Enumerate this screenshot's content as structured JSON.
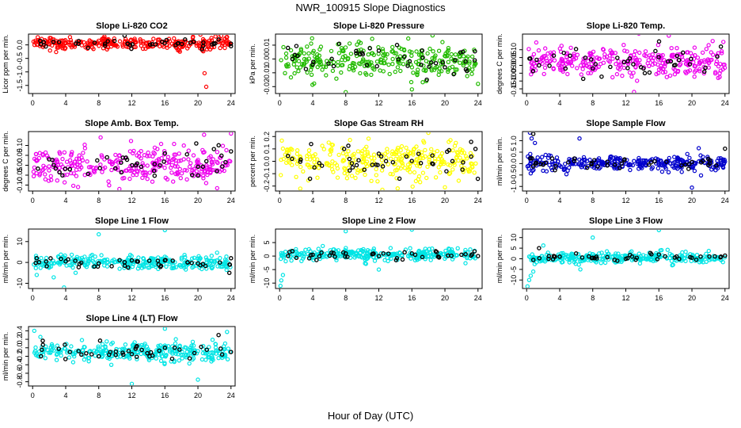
{
  "title": "NWR_100915  Slope Diagnostics",
  "xlabel": "Hour of Day (UTC)",
  "chart_data": [
    {
      "type": "scatter",
      "title": "Slope Li-820 CO2",
      "ylabel": "Licor ppm per min.",
      "color": "#ff0000",
      "ylim": [
        -1.8,
        0.4
      ],
      "yticks": [
        0.0,
        -0.5,
        -1.0,
        -1.5
      ],
      "ytick_labels": [
        "0.0",
        "-0.5",
        "-1.0",
        "-1.5"
      ],
      "xlim": [
        -0.5,
        24.5
      ],
      "xticks": [
        0,
        4,
        8,
        12,
        16,
        20,
        24
      ],
      "spread": 0.11,
      "center": 0.05,
      "outliers": [
        {
          "x": 20.8,
          "y": -1.05
        },
        {
          "x": 21.0,
          "y": -1.55
        },
        {
          "x": 20.3,
          "y": 0.38
        }
      ],
      "black_points": [
        {
          "x": 1,
          "y": 0.02
        },
        {
          "x": 3.2,
          "y": 0.1
        },
        {
          "x": 7.5,
          "y": 0.08
        },
        {
          "x": 11.5,
          "y": 0.05
        },
        {
          "x": 16.2,
          "y": 0.18
        },
        {
          "x": 19.5,
          "y": 0.12
        },
        {
          "x": 22.5,
          "y": 0.2
        },
        {
          "x": 24,
          "y": -0.05
        }
      ]
    },
    {
      "type": "scatter",
      "title": "Slope Li-820 Pressure",
      "ylabel": "kPa per min.",
      "color": "#22bb00",
      "ylim": [
        -0.025,
        0.018
      ],
      "yticks": [
        0.01,
        0.0,
        -0.01,
        -0.02
      ],
      "ytick_labels": [
        "0.01",
        "0.00",
        "-0.01",
        "-0.02"
      ],
      "xlim": [
        -0.5,
        24.5
      ],
      "xticks": [
        0,
        4,
        8,
        12,
        16,
        20,
        24
      ],
      "spread": 0.005,
      "center": -0.001,
      "outliers": [
        {
          "x": 8.0,
          "y": -0.024
        },
        {
          "x": 16.0,
          "y": -0.022
        },
        {
          "x": 18.5,
          "y": 0.017
        },
        {
          "x": 24.0,
          "y": -0.018
        }
      ],
      "black_points": [
        {
          "x": 1,
          "y": 0.008
        },
        {
          "x": 4,
          "y": -0.004
        },
        {
          "x": 7.2,
          "y": 0.011
        },
        {
          "x": 12,
          "y": 0.006
        },
        {
          "x": 15.5,
          "y": -0.005
        },
        {
          "x": 17.8,
          "y": -0.015
        },
        {
          "x": 20,
          "y": -0.006
        },
        {
          "x": 23.6,
          "y": -0.001
        }
      ]
    },
    {
      "type": "scatter",
      "title": "Slope Li-820 Temp.",
      "ylabel": "degrees C per min.",
      "color": "#ee00ee",
      "ylim": [
        -0.18,
        0.2
      ],
      "yticks": [
        0.1,
        0.05,
        0.0,
        -0.05,
        -0.1,
        -0.15
      ],
      "ytick_labels": [
        "0.10",
        "0.05",
        "0.00",
        "-0.05",
        "-0.10",
        "-0.15"
      ],
      "xlim": [
        -0.5,
        24.5
      ],
      "xticks": [
        0,
        4,
        8,
        12,
        16,
        20,
        24
      ],
      "spread": 0.05,
      "center": 0.02,
      "outliers": [
        {
          "x": 17.2,
          "y": 0.19
        },
        {
          "x": 13.0,
          "y": -0.17
        },
        {
          "x": 23.8,
          "y": 0.15
        }
      ],
      "black_points": [
        {
          "x": 1.5,
          "y": 0.0
        },
        {
          "x": 4.5,
          "y": 0.08
        },
        {
          "x": 8,
          "y": -0.02
        },
        {
          "x": 11.8,
          "y": 0.02
        },
        {
          "x": 14.3,
          "y": -0.05
        },
        {
          "x": 18.2,
          "y": 0.06
        },
        {
          "x": 21.5,
          "y": -0.04
        },
        {
          "x": 23.5,
          "y": 0.12
        }
      ]
    },
    {
      "type": "scatter",
      "title": "Slope Amb. Box Temp.",
      "ylabel": "degrees C per min.",
      "color": "#ee00ee",
      "ylim": [
        -0.13,
        0.17
      ],
      "yticks": [
        0.1,
        0.05,
        0.0,
        -0.05,
        -0.1
      ],
      "ytick_labels": [
        "0.10",
        "0.05",
        "0.00",
        "-0.05",
        "-0.10"
      ],
      "xlim": [
        -0.5,
        24.5
      ],
      "xticks": [
        0,
        4,
        8,
        12,
        16,
        20,
        24
      ],
      "spread": 0.045,
      "center": 0.0,
      "outliers": [
        {
          "x": 10.5,
          "y": -0.12
        },
        {
          "x": 24.0,
          "y": 0.16
        },
        {
          "x": 5.5,
          "y": -0.11
        }
      ],
      "black_points": [
        {
          "x": 2,
          "y": 0.03
        },
        {
          "x": 4.5,
          "y": -0.02
        },
        {
          "x": 9,
          "y": 0.04
        },
        {
          "x": 12.5,
          "y": 0.0
        },
        {
          "x": 16,
          "y": 0.06
        },
        {
          "x": 19.8,
          "y": 0.11
        },
        {
          "x": 22.3,
          "y": -0.03
        },
        {
          "x": 24.0,
          "y": 0.07
        }
      ]
    },
    {
      "type": "scatter",
      "title": "Slope Gas Stream RH",
      "ylabel": "percent per min.",
      "color": "#ffff00",
      "ylim": [
        -0.24,
        0.24
      ],
      "yticks": [
        0.2,
        0.1,
        0.0,
        -0.1,
        -0.2
      ],
      "ytick_labels": [
        "0.2",
        "0.1",
        "0.0",
        "-0.1",
        "-0.2"
      ],
      "xlim": [
        -0.5,
        24.5
      ],
      "xticks": [
        0,
        4,
        8,
        12,
        16,
        20,
        24
      ],
      "spread": 0.07,
      "center": 0.0,
      "outliers": [
        {
          "x": 18.0,
          "y": 0.23
        },
        {
          "x": 2.5,
          "y": -0.22
        },
        {
          "x": 20.0,
          "y": -0.21
        }
      ],
      "black_points": [
        {
          "x": 1.5,
          "y": 0.02
        },
        {
          "x": 4.2,
          "y": -0.05
        },
        {
          "x": 7.8,
          "y": 0.1
        },
        {
          "x": 12.3,
          "y": 0.04
        },
        {
          "x": 14.5,
          "y": -0.14
        },
        {
          "x": 16.8,
          "y": 0.06
        },
        {
          "x": 20.5,
          "y": 0.09
        },
        {
          "x": 23.7,
          "y": 0.1
        }
      ]
    },
    {
      "type": "scatter",
      "title": "Slope Sample Flow",
      "ylabel": "ml/min per min.",
      "color": "#0000cc",
      "ylim": [
        -1.2,
        1.4
      ],
      "yticks": [
        1.0,
        0.5,
        0.0,
        -0.5,
        -1.0
      ],
      "ytick_labels": [
        "1.0",
        "0.5",
        "0.0",
        "-0.5",
        "-1.0"
      ],
      "xlim": [
        -0.5,
        24.5
      ],
      "xticks": [
        0,
        4,
        8,
        12,
        16,
        20,
        24
      ],
      "spread": 0.16,
      "center": 0.0,
      "outliers": [
        {
          "x": 0.4,
          "y": 1.35
        },
        {
          "x": 0.6,
          "y": 1.1
        },
        {
          "x": 1.0,
          "y": 0.9
        },
        {
          "x": 20.0,
          "y": -1.05
        },
        {
          "x": 6.4,
          "y": 1.1
        }
      ],
      "black_points": [
        {
          "x": 0.8,
          "y": 1.3
        },
        {
          "x": 3.5,
          "y": -0.1
        },
        {
          "x": 8.2,
          "y": 0.15
        },
        {
          "x": 11.5,
          "y": 0.0
        },
        {
          "x": 15.5,
          "y": 0.1
        },
        {
          "x": 19.2,
          "y": -0.05
        },
        {
          "x": 22,
          "y": 0.2
        },
        {
          "x": 24,
          "y": 0.65
        }
      ]
    },
    {
      "type": "scatter",
      "title": "Slope Line 1 Flow",
      "ylabel": "ml/min per min.",
      "color": "#00e5e5",
      "ylim": [
        -12.5,
        16
      ],
      "yticks": [
        10,
        0,
        -10
      ],
      "ytick_labels": [
        "10",
        "0",
        "-10"
      ],
      "xlim": [
        -0.5,
        24.5
      ],
      "xticks": [
        0,
        4,
        8,
        12,
        16,
        20,
        24
      ],
      "spread": 1.6,
      "center": 0.0,
      "outliers": [
        {
          "x": 8.0,
          "y": 13.5
        },
        {
          "x": 16.0,
          "y": 15.5
        },
        {
          "x": 3.8,
          "y": -12.0
        },
        {
          "x": 0.5,
          "y": -6.0
        }
      ],
      "black_points": [
        {
          "x": 0.5,
          "y": 2
        },
        {
          "x": 4,
          "y": 0.5
        },
        {
          "x": 8,
          "y": -0.5
        },
        {
          "x": 12,
          "y": 1
        },
        {
          "x": 16,
          "y": 1
        },
        {
          "x": 20,
          "y": -0.5
        },
        {
          "x": 23.8,
          "y": -5.0
        },
        {
          "x": 24,
          "y": 2
        }
      ]
    },
    {
      "type": "scatter",
      "title": "Slope Line 2 Flow",
      "ylabel": "ml/min per min.",
      "color": "#00e5e5",
      "ylim": [
        -12,
        10
      ],
      "yticks": [
        5,
        0,
        -5,
        -10
      ],
      "ytick_labels": [
        "5",
        "0",
        "-5",
        "-10"
      ],
      "xlim": [
        -0.5,
        24.5
      ],
      "xticks": [
        0,
        4,
        8,
        12,
        16,
        20,
        24
      ],
      "spread": 1.0,
      "center": 0.5,
      "outliers": [
        {
          "x": 0.1,
          "y": -11
        },
        {
          "x": 0.2,
          "y": -9
        },
        {
          "x": 0.4,
          "y": -7
        },
        {
          "x": 8.0,
          "y": 9.2
        },
        {
          "x": 16.0,
          "y": 9.8
        },
        {
          "x": 12.0,
          "y": -5.0
        }
      ],
      "black_points": [
        {
          "x": 1.2,
          "y": 1.5
        },
        {
          "x": 4,
          "y": 0.5
        },
        {
          "x": 8,
          "y": 1
        },
        {
          "x": 12,
          "y": 0
        },
        {
          "x": 16,
          "y": 1
        },
        {
          "x": 19,
          "y": 1.5
        },
        {
          "x": 22,
          "y": 0.5
        },
        {
          "x": 24,
          "y": 0
        }
      ]
    },
    {
      "type": "scatter",
      "title": "Slope Line 3 Flow",
      "ylabel": "ml/min per min.",
      "color": "#00e5e5",
      "ylim": [
        -14,
        14
      ],
      "yticks": [
        10,
        5,
        0,
        -5,
        -10
      ],
      "ytick_labels": [
        "10",
        "5",
        "0",
        "-5",
        "-10"
      ],
      "xlim": [
        -0.5,
        24.5
      ],
      "xticks": [
        0,
        4,
        8,
        12,
        16,
        20,
        24
      ],
      "spread": 1.2,
      "center": 0.5,
      "outliers": [
        {
          "x": 0.1,
          "y": -13
        },
        {
          "x": 0.3,
          "y": -10
        },
        {
          "x": 0.5,
          "y": -8
        },
        {
          "x": 0.8,
          "y": -6
        },
        {
          "x": 8.0,
          "y": 10.0
        },
        {
          "x": 16.0,
          "y": 13.5
        },
        {
          "x": 6.5,
          "y": -5.0
        }
      ],
      "black_points": [
        {
          "x": 1.5,
          "y": 5
        },
        {
          "x": 4,
          "y": 1
        },
        {
          "x": 8,
          "y": 0.5
        },
        {
          "x": 12,
          "y": 0
        },
        {
          "x": 16,
          "y": 2
        },
        {
          "x": 20,
          "y": 0.5
        },
        {
          "x": 23.5,
          "y": 1
        },
        {
          "x": 24,
          "y": 1.5
        }
      ]
    },
    {
      "type": "scatter",
      "title": "Slope Line 4 (LT) Flow",
      "ylabel": "ml/min per min.",
      "color": "#00e5e5",
      "ylim": [
        -0.9,
        0.5
      ],
      "yticks": [
        0.4,
        0.2,
        0.0,
        -0.2,
        -0.4,
        -0.6,
        -0.8
      ],
      "ytick_labels": [
        "0.4",
        "0.2",
        "0.0",
        "-0.2",
        "-0.4",
        "-0.6",
        "-0.8"
      ],
      "xlim": [
        -0.5,
        24.5
      ],
      "xticks": [
        0,
        4,
        8,
        12,
        16,
        20,
        24
      ],
      "spread": 0.11,
      "center": -0.1,
      "outliers": [
        {
          "x": 12.0,
          "y": -0.85
        },
        {
          "x": 20.0,
          "y": -0.75
        },
        {
          "x": 0.2,
          "y": 0.4
        },
        {
          "x": 16.0,
          "y": 0.45
        }
      ],
      "black_points": [
        {
          "x": 1,
          "y": -0.2
        },
        {
          "x": 4.5,
          "y": -0.1
        },
        {
          "x": 8,
          "y": -0.2
        },
        {
          "x": 12,
          "y": -0.15
        },
        {
          "x": 16,
          "y": 0.0
        },
        {
          "x": 19,
          "y": -0.25
        },
        {
          "x": 22.5,
          "y": 0.3
        },
        {
          "x": 24,
          "y": -0.1
        }
      ]
    }
  ]
}
